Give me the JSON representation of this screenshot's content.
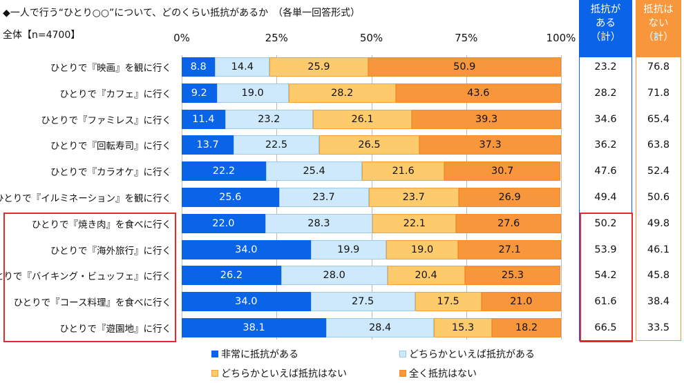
{
  "chart_data": {
    "type": "bar",
    "orientation": "horizontal-stacked-100",
    "title": "◆一人で行う“ひとり○○”について、どのくらい抵抗があるか　（各単一回答形式）",
    "subtitle": "全体【n=4700】",
    "xticks": [
      "0%",
      "25%",
      "50%",
      "75%",
      "100%"
    ],
    "xlim": [
      0,
      100
    ],
    "categories": [
      "ひとりで『映画』を観に行く",
      "ひとりで『カフェ』に行く",
      "ひとりで『ファミレス』に行く",
      "ひとりで『回転寿司』に行く",
      "ひとりで『カラオケ』に行く",
      "ひとりで『イルミネーション』を観に行く",
      "ひとりで『焼き肉』を食べに行く",
      "ひとりで『海外旅行』に行く",
      "ひとりで『バイキング・ビュッフェ』に行く",
      "ひとりで『コース料理』を食べに行く",
      "ひとりで『遊園地』に行く"
    ],
    "series": [
      {
        "name": "非常に抵抗がある",
        "color": "#0a64e8",
        "values": [
          8.8,
          9.2,
          11.4,
          13.7,
          22.2,
          25.6,
          22.0,
          34.0,
          26.2,
          34.0,
          38.1
        ]
      },
      {
        "name": "どちらかといえば抵抗がある",
        "color": "#cde9fb",
        "values": [
          14.4,
          19.0,
          23.2,
          22.5,
          25.4,
          23.7,
          28.3,
          19.9,
          28.0,
          27.5,
          28.4
        ]
      },
      {
        "name": "どちらかといえば抵抗はない",
        "color": "#fdcb6b",
        "values": [
          25.9,
          28.2,
          26.1,
          26.5,
          21.6,
          23.7,
          22.1,
          19.0,
          20.4,
          17.5,
          15.3
        ]
      },
      {
        "name": "全く抵抗はない",
        "color": "#f7963a",
        "values": [
          50.9,
          43.6,
          39.3,
          37.3,
          30.7,
          26.9,
          27.6,
          27.1,
          25.3,
          21.0,
          18.2
        ]
      }
    ],
    "summary_columns": [
      {
        "header": [
          "抵抗が",
          "ある",
          "（計）"
        ],
        "color": "#0a64e8",
        "values": [
          "23.2",
          "28.2",
          "34.6",
          "36.2",
          "47.6",
          "49.4",
          "50.2",
          "53.9",
          "54.2",
          "61.6",
          "66.5"
        ]
      },
      {
        "header": [
          "抵抗は",
          "ない",
          "（計）"
        ],
        "color": "#f7963a",
        "values": [
          "76.8",
          "71.8",
          "65.4",
          "63.8",
          "52.4",
          "50.6",
          "49.8",
          "46.1",
          "45.8",
          "38.4",
          "33.5"
        ]
      }
    ],
    "legend_position": "bottom",
    "highlighted_rows": "last five"
  }
}
